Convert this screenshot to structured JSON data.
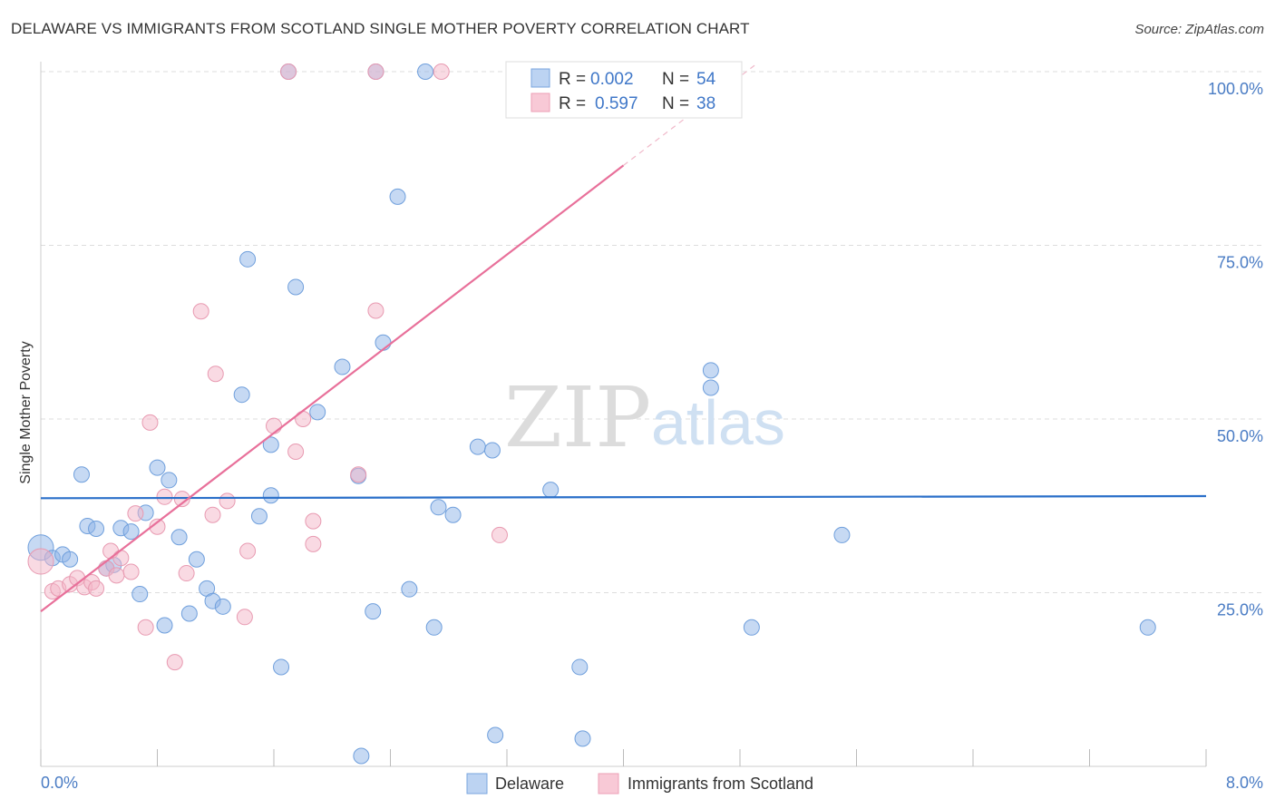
{
  "title": "DELAWARE VS IMMIGRANTS FROM SCOTLAND SINGLE MOTHER POVERTY CORRELATION CHART",
  "source": "Source: ZipAtlas.com",
  "watermark": {
    "zip": "ZIP",
    "atlas": "atlas"
  },
  "chart_data": {
    "type": "scatter",
    "xlabel": "",
    "ylabel": "Single Mother Poverty",
    "xlim": [
      0,
      8
    ],
    "ylim": [
      0,
      100
    ],
    "x_tick_labels": [
      "0.0%",
      "8.0%"
    ],
    "y_ticks": [
      25,
      50,
      75,
      100
    ],
    "y_tick_labels": [
      "25.0%",
      "50.0%",
      "75.0%",
      "100.0%"
    ],
    "grid": true,
    "legend_position": "top-center",
    "series": [
      {
        "name": "Delaware",
        "color": "#8db4e8",
        "stroke": "#6f9fdc",
        "line_color": "#2a6fc9",
        "R_label": "R =",
        "R": "0.002",
        "N_label": "N =",
        "N": "54",
        "trend": {
          "x0": 0,
          "y0": 38.6,
          "x1": 8,
          "y1": 38.9
        },
        "points": [
          [
            0.0,
            31.5
          ],
          [
            0.08,
            30.0
          ],
          [
            0.15,
            30.5
          ],
          [
            0.2,
            29.8
          ],
          [
            0.28,
            42.0
          ],
          [
            0.32,
            34.6
          ],
          [
            0.38,
            34.2
          ],
          [
            0.45,
            28.5
          ],
          [
            0.5,
            29.0
          ],
          [
            0.55,
            34.3
          ],
          [
            0.62,
            33.8
          ],
          [
            0.68,
            24.8
          ],
          [
            0.72,
            36.5
          ],
          [
            0.8,
            43.0
          ],
          [
            0.85,
            20.3
          ],
          [
            0.88,
            41.2
          ],
          [
            0.95,
            33.0
          ],
          [
            1.02,
            22.0
          ],
          [
            1.07,
            29.8
          ],
          [
            1.14,
            25.6
          ],
          [
            1.18,
            23.8
          ],
          [
            1.25,
            23.0
          ],
          [
            1.38,
            53.5
          ],
          [
            1.42,
            73.0
          ],
          [
            1.5,
            36.0
          ],
          [
            1.58,
            46.3
          ],
          [
            1.58,
            39.0
          ],
          [
            1.65,
            14.3
          ],
          [
            1.7,
            100.0
          ],
          [
            1.75,
            69.0
          ],
          [
            1.9,
            51.0
          ],
          [
            2.07,
            57.5
          ],
          [
            2.18,
            41.8
          ],
          [
            2.2,
            1.5
          ],
          [
            2.28,
            22.3
          ],
          [
            2.3,
            100.0
          ],
          [
            2.35,
            61.0
          ],
          [
            2.45,
            82.0
          ],
          [
            2.53,
            25.5
          ],
          [
            2.64,
            100.0
          ],
          [
            2.7,
            20.0
          ],
          [
            2.73,
            37.3
          ],
          [
            2.83,
            36.2
          ],
          [
            3.0,
            46.0
          ],
          [
            3.1,
            45.5
          ],
          [
            3.12,
            4.5
          ],
          [
            3.5,
            39.8
          ],
          [
            3.7,
            14.3
          ],
          [
            3.72,
            4.0
          ],
          [
            4.6,
            57.0
          ],
          [
            4.6,
            54.5
          ],
          [
            4.88,
            20.0
          ],
          [
            5.5,
            33.3
          ],
          [
            7.6,
            20.0
          ]
        ]
      },
      {
        "name": "Immigrants from Scotland",
        "color": "#f4b6c8",
        "stroke": "#e89ab1",
        "line_color": "#e8709a",
        "R_label": "R =",
        "R": "0.597",
        "N_label": "N =",
        "N": "38",
        "trend": {
          "x0": 0,
          "y0": 22.3,
          "x1": 4.0,
          "y1": 86.5,
          "dash_x1": 4.9,
          "dash_y1": 100.9
        },
        "points": [
          [
            0.0,
            29.5
          ],
          [
            0.08,
            25.2
          ],
          [
            0.12,
            25.6
          ],
          [
            0.2,
            26.2
          ],
          [
            0.25,
            27.1
          ],
          [
            0.3,
            25.8
          ],
          [
            0.35,
            26.5
          ],
          [
            0.38,
            25.6
          ],
          [
            0.45,
            28.5
          ],
          [
            0.48,
            31.0
          ],
          [
            0.52,
            27.5
          ],
          [
            0.55,
            30.0
          ],
          [
            0.62,
            28.0
          ],
          [
            0.65,
            36.4
          ],
          [
            0.72,
            20.0
          ],
          [
            0.75,
            49.5
          ],
          [
            0.8,
            34.5
          ],
          [
            0.85,
            38.8
          ],
          [
            0.92,
            15.0
          ],
          [
            0.97,
            38.5
          ],
          [
            1.0,
            27.8
          ],
          [
            1.1,
            65.5
          ],
          [
            1.18,
            36.2
          ],
          [
            1.2,
            56.5
          ],
          [
            1.28,
            38.2
          ],
          [
            1.4,
            21.5
          ],
          [
            1.42,
            31.0
          ],
          [
            1.6,
            49.0
          ],
          [
            1.7,
            100.0
          ],
          [
            1.75,
            45.3
          ],
          [
            1.8,
            50.0
          ],
          [
            1.87,
            32.0
          ],
          [
            1.87,
            35.3
          ],
          [
            2.18,
            42.0
          ],
          [
            2.3,
            100.0
          ],
          [
            2.3,
            65.6
          ],
          [
            2.75,
            100.0
          ],
          [
            3.15,
            33.3
          ]
        ]
      }
    ]
  }
}
